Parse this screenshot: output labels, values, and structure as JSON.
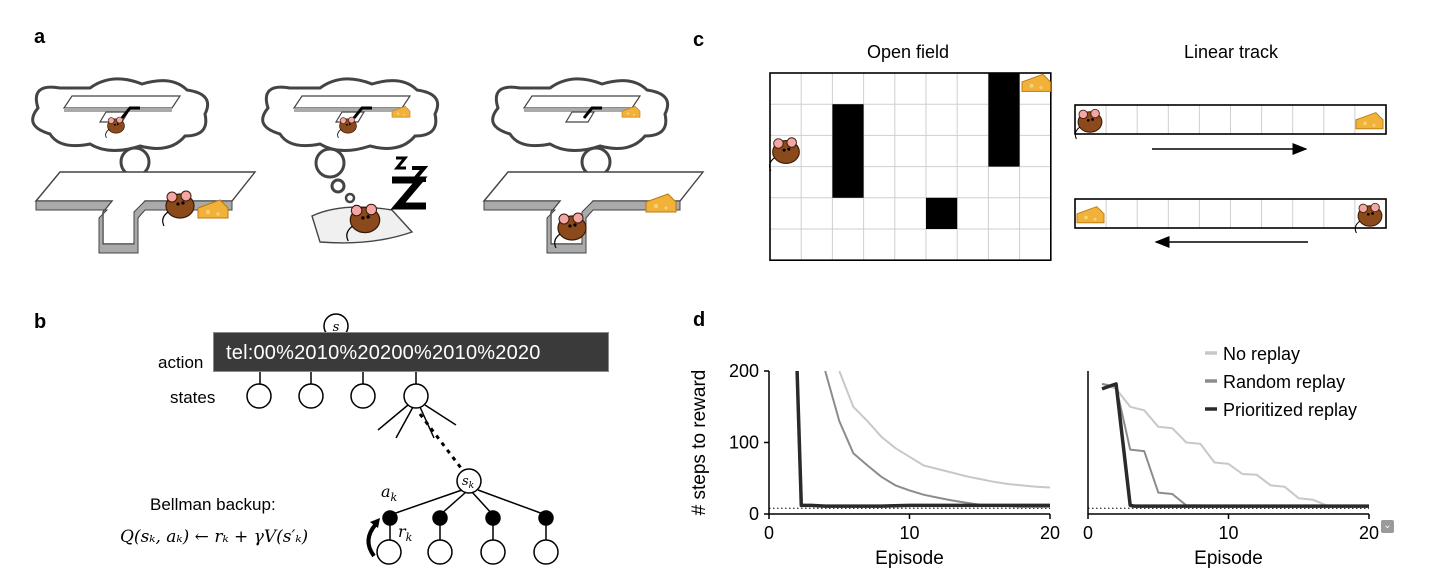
{
  "panels": {
    "a": "a",
    "b": "b",
    "c": "c",
    "d": "d"
  },
  "panel_c": {
    "open_field_title": "Open field",
    "linear_track_title": "Linear track"
  },
  "panel_b": {
    "root_state": "s",
    "actions_label": "action",
    "states_label": "states",
    "node_sk": "s",
    "node_sk_sub": "k",
    "ak_label": "a",
    "ak_sub": "k",
    "rk_label": "r",
    "rk_sub": "k",
    "bellman_title": "Bellman backup:",
    "bellman_equation": "Q(sₖ, aₖ) ← rₖ + γV(s′ₖ)"
  },
  "tooltip": {
    "text": "tel:00%2010%20200%2010%2020"
  },
  "chart_data": [
    {
      "type": "line",
      "xlabel": "Episode",
      "ylabel": "# steps to reward",
      "xlim": [
        0,
        20
      ],
      "ylim": [
        0,
        200
      ],
      "xticks": [
        "0",
        "10",
        "20"
      ],
      "yticks": [
        "0",
        "100",
        "200"
      ],
      "series": [
        {
          "name": "No replay",
          "color": "#c8c8c8",
          "x": [
            5,
            6,
            7,
            8,
            9,
            10,
            11,
            12,
            13,
            14,
            15,
            16,
            17,
            18,
            19,
            20
          ],
          "y": [
            200,
            150,
            130,
            108,
            92,
            80,
            68,
            63,
            58,
            53,
            49,
            45,
            42,
            40,
            38,
            37
          ]
        },
        {
          "name": "Random replay",
          "color": "#8c8c8c",
          "x": [
            4,
            5,
            6,
            7,
            8,
            9,
            10,
            11,
            12,
            13,
            14,
            15,
            16,
            17,
            18,
            19,
            20
          ],
          "y": [
            200,
            130,
            85,
            68,
            52,
            40,
            33,
            27,
            23,
            19,
            16,
            13,
            12,
            11,
            10,
            10,
            10
          ]
        },
        {
          "name": "Prioritized replay",
          "color": "#2a2a2a",
          "x": [
            2,
            2.3,
            3,
            4,
            6,
            8,
            10,
            12,
            14,
            16,
            18,
            20
          ],
          "y": [
            200,
            12,
            12,
            11,
            11,
            11,
            12,
            12,
            12,
            12,
            12,
            12
          ]
        }
      ]
    },
    {
      "type": "line",
      "xlabel": "Episode",
      "ylabel": "",
      "xlim": [
        0,
        20
      ],
      "ylim": [
        0,
        200
      ],
      "xticks": [
        "0",
        "10",
        "20"
      ],
      "yticks": [],
      "legend": [
        "No replay",
        "Random replay",
        "Prioritized replay"
      ],
      "series": [
        {
          "name": "No replay",
          "color": "#c8c8c8",
          "x": [
            1,
            2,
            3,
            4,
            5,
            6,
            7,
            8,
            9,
            10,
            11,
            12,
            13,
            14,
            15,
            16,
            17,
            18,
            19,
            20
          ],
          "y": [
            182,
            175,
            150,
            145,
            122,
            120,
            100,
            98,
            72,
            70,
            56,
            55,
            40,
            38,
            22,
            20,
            12,
            10,
            10,
            10
          ]
        },
        {
          "name": "Random replay",
          "color": "#8c8c8c",
          "x": [
            1,
            2,
            3,
            4,
            5,
            6,
            7,
            8,
            9,
            10,
            12,
            14,
            16,
            18,
            20
          ],
          "y": [
            182,
            178,
            90,
            88,
            30,
            28,
            12,
            12,
            11,
            11,
            11,
            11,
            11,
            11,
            11
          ]
        },
        {
          "name": "Prioritized replay",
          "color": "#2a2a2a",
          "x": [
            1,
            2,
            3,
            3.3,
            4,
            6,
            8,
            10,
            12,
            14,
            16,
            18,
            20
          ],
          "y": [
            175,
            182,
            12,
            11,
            11,
            11,
            11,
            11,
            11,
            11,
            11,
            11,
            11
          ]
        }
      ]
    }
  ]
}
